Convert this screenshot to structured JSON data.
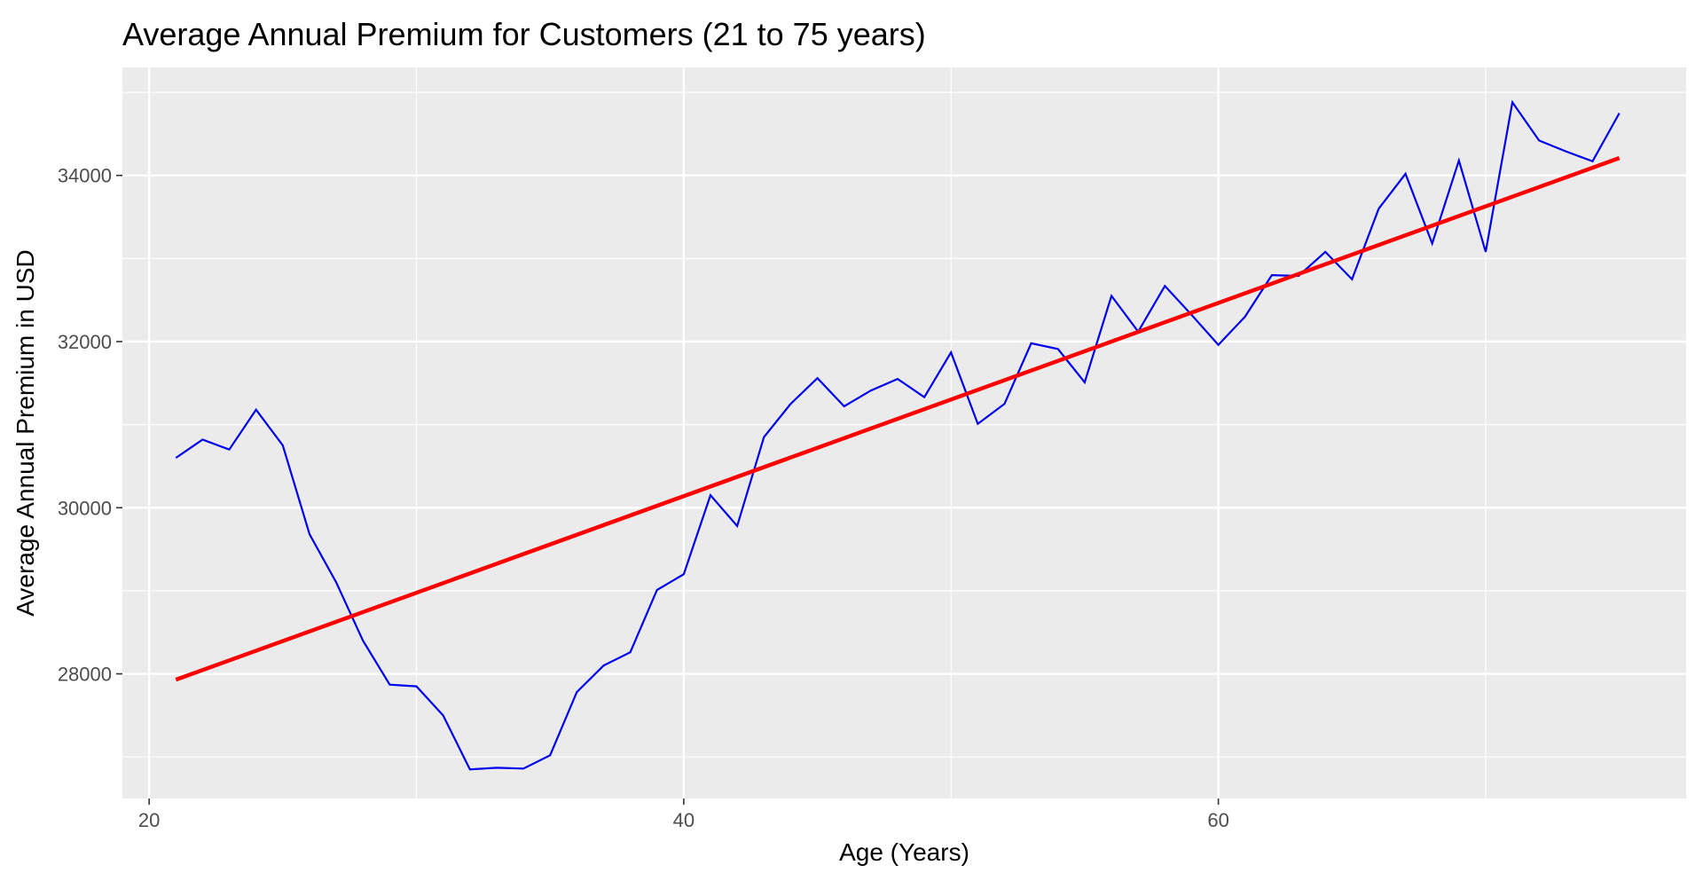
{
  "chart_data": {
    "type": "line",
    "title": "Average Annual Premium for Customers (21 to 75 years)",
    "xlabel": "Age (Years)",
    "ylabel": "Average Annual Premium in USD",
    "xlim": [
      19,
      77.5
    ],
    "ylim": [
      26500,
      35300
    ],
    "x_ticks": [
      20,
      40,
      60
    ],
    "x_tick_labels": [
      "20",
      "40",
      "60"
    ],
    "x_minor_ticks": [
      30,
      50,
      70
    ],
    "y_ticks": [
      28000,
      30000,
      32000,
      34000
    ],
    "y_tick_labels": [
      "28000",
      "30000",
      "32000",
      "34000"
    ],
    "y_minor_ticks": [
      27000,
      29000,
      31000,
      33000,
      35000
    ],
    "grid": true,
    "series": [
      {
        "kind": "line",
        "color": "#0000EE",
        "x": [
          21,
          22,
          23,
          24,
          25,
          26,
          27,
          28,
          29,
          30,
          31,
          32,
          33,
          34,
          35,
          36,
          37,
          38,
          39,
          40,
          41,
          42,
          43,
          44,
          45,
          46,
          47,
          48,
          49,
          50,
          51,
          52,
          53,
          54,
          55,
          56,
          57,
          58,
          59,
          60,
          61,
          62,
          63,
          64,
          65,
          66,
          67,
          68,
          69,
          70,
          71,
          72,
          73,
          74,
          75
        ],
        "y": [
          30600,
          30820,
          30700,
          31180,
          30750,
          29680,
          29100,
          28400,
          27870,
          27850,
          27500,
          26850,
          26870,
          26860,
          27020,
          27780,
          28100,
          28260,
          29010,
          29200,
          30150,
          29780,
          30850,
          31250,
          31560,
          31220,
          31410,
          31550,
          31330,
          31870,
          31010,
          31250,
          31980,
          31910,
          31510,
          32550,
          32120,
          32670,
          32320,
          31960,
          32300,
          32800,
          32790,
          33080,
          32750,
          33600,
          34020,
          33180,
          34180,
          33080,
          34880,
          34420,
          34290,
          34170,
          34750
        ]
      },
      {
        "kind": "trend",
        "color": "#FF0000",
        "x": [
          21,
          75
        ],
        "y": [
          27930,
          34210
        ]
      }
    ]
  }
}
